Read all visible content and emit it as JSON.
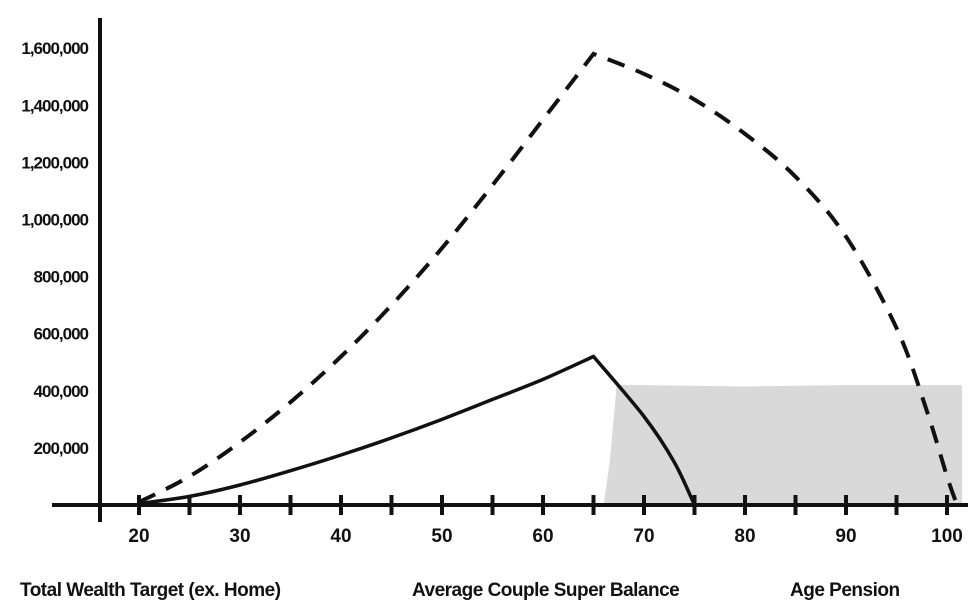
{
  "chart_data": {
    "type": "line",
    "title": "",
    "xlabel": "",
    "ylabel": "",
    "x_ticks": [
      20,
      30,
      40,
      50,
      60,
      70,
      80,
      90,
      100
    ],
    "x_tick_labels": [
      "20",
      "30",
      "40",
      "50",
      "60",
      "70",
      "80",
      "90",
      "100"
    ],
    "y_ticks": [
      200000,
      400000,
      600000,
      800000,
      1000000,
      1200000,
      1400000,
      1600000
    ],
    "y_tick_labels": [
      "200,000",
      "400,000",
      "600,000",
      "800,000",
      "1,000,000",
      "1,200,000",
      "1,400,000",
      "1,600,000"
    ],
    "xlim": [
      16.5,
      102
    ],
    "ylim": [
      0,
      1700000
    ],
    "grid": false,
    "series": [
      {
        "name": "Total Wealth Target (ex. Home)",
        "style": "dashed",
        "color": "#111111",
        "x": [
          20,
          25,
          30,
          35,
          40,
          45,
          50,
          55,
          60,
          65,
          70,
          75,
          80,
          85,
          90,
          95,
          98,
          100,
          101
        ],
        "y": [
          10000,
          100000,
          220000,
          360000,
          520000,
          700000,
          900000,
          1120000,
          1350000,
          1580000,
          1510000,
          1420000,
          1300000,
          1150000,
          940000,
          620000,
          330000,
          100000,
          0
        ]
      },
      {
        "name": "Average Couple Super Balance",
        "style": "solid",
        "color": "#111111",
        "x": [
          20,
          25,
          30,
          35,
          40,
          45,
          50,
          55,
          60,
          65,
          70,
          73,
          75
        ],
        "y": [
          5000,
          30000,
          70000,
          120000,
          175000,
          235000,
          300000,
          370000,
          440000,
          520000,
          310000,
          150000,
          0
        ]
      },
      {
        "name": "Age Pension",
        "style": "area",
        "color": "#d9d9d9",
        "x": [
          66,
          66.6,
          67.3,
          70,
          80,
          90,
          100,
          101.5
        ],
        "y": [
          0,
          150000,
          420000,
          420000,
          415000,
          420000,
          420000,
          420000
        ]
      }
    ],
    "legend": [
      "Total Wealth Target (ex. Home)",
      "Average Couple Super Balance",
      "Age Pension"
    ],
    "legend_position": "bottom"
  }
}
